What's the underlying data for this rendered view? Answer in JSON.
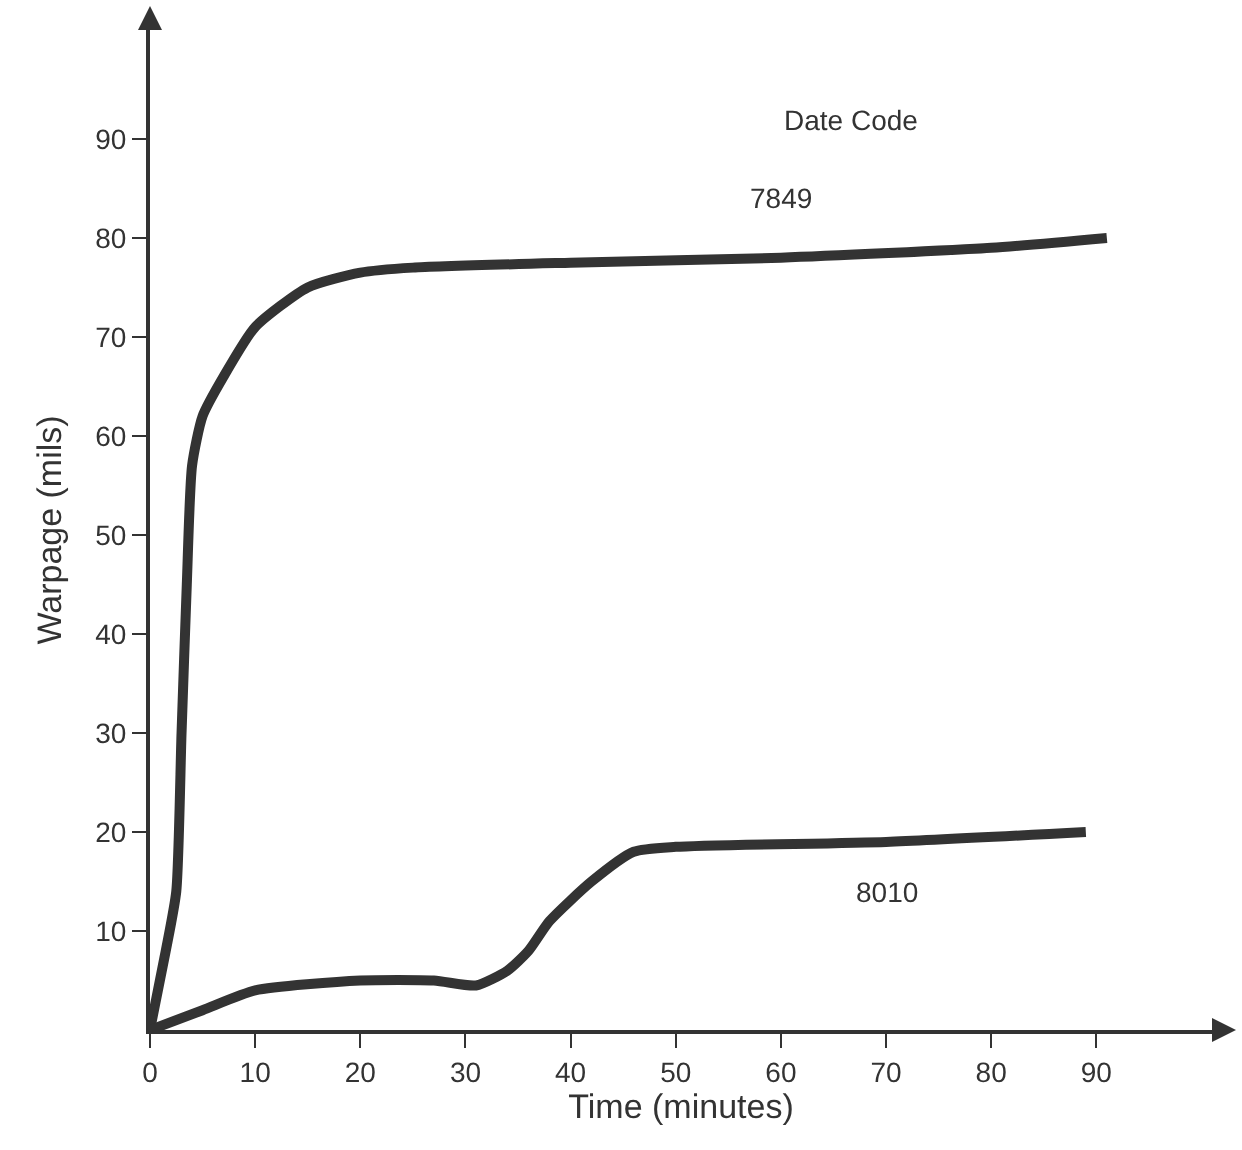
{
  "chart_data": {
    "type": "line",
    "xlabel": "Time (minutes)",
    "ylabel": "Warpage (mils)",
    "xlim": [
      0,
      101
    ],
    "ylim": [
      0,
      101
    ],
    "xticks": [
      0,
      10,
      20,
      30,
      40,
      50,
      60,
      70,
      80,
      90
    ],
    "yticks": [
      10,
      20,
      30,
      40,
      50,
      60,
      70,
      80,
      90
    ],
    "grid": false,
    "legend": false,
    "marker": "none",
    "line_style": "solid",
    "annotations": [
      "Date Code"
    ],
    "series": [
      {
        "name": "7849",
        "color": "#333333",
        "x": [
          0,
          1.5,
          2.5,
          3,
          3.5,
          4,
          5,
          7,
          10,
          15,
          20,
          25,
          40,
          60,
          80,
          91
        ],
        "values": [
          0,
          8,
          14,
          30,
          45,
          57,
          62,
          66,
          71,
          75,
          76.5,
          77,
          77.5,
          78,
          79,
          80
        ]
      },
      {
        "name": "8010",
        "color": "#333333",
        "x": [
          0,
          5,
          10,
          20,
          27,
          31,
          34,
          36,
          38,
          42,
          46,
          50,
          70,
          89
        ],
        "values": [
          0,
          2,
          4,
          5,
          5,
          4.5,
          6,
          8,
          11,
          15,
          18,
          18.5,
          19,
          20
        ]
      }
    ]
  }
}
